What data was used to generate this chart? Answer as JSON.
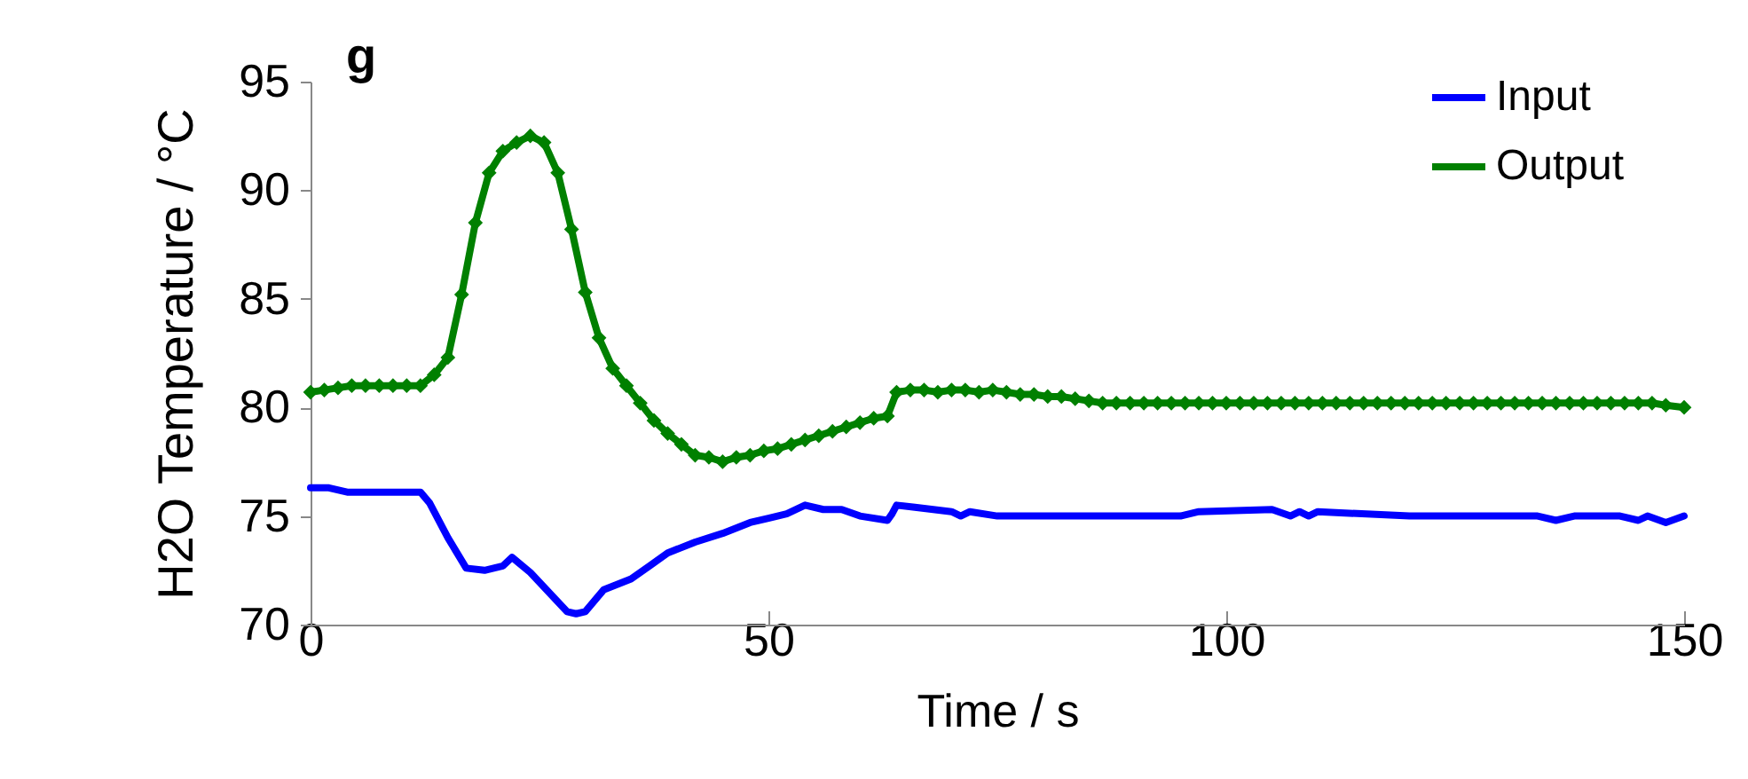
{
  "chart_data": {
    "type": "line",
    "title": "g",
    "xlabel": "Time / s",
    "ylabel": "H2O Temperature / °C",
    "xlim": [
      0,
      150
    ],
    "xticks": [
      0,
      50,
      100,
      150
    ],
    "ylim": [
      70,
      95
    ],
    "yticks": [
      70,
      75,
      80,
      85,
      90,
      95
    ],
    "grid": false,
    "legend": "top right",
    "line_style": "solid",
    "series": [
      {
        "name": "Input",
        "color": "#0000ff",
        "marker": "none",
        "x": [
          0,
          2,
          4,
          8,
          12,
          13,
          15,
          17,
          19,
          21,
          22,
          24,
          26,
          28,
          29,
          30,
          32,
          35,
          37,
          39,
          42,
          45,
          48,
          50,
          52,
          54,
          56,
          58,
          60,
          63,
          63.5,
          64,
          66,
          70,
          71,
          72,
          75,
          80,
          95,
          97,
          105,
          107,
          108,
          109,
          110,
          120,
          134,
          136,
          138,
          143,
          145,
          146,
          148,
          150
        ],
        "values": [
          76.3,
          76.3,
          76.1,
          76.1,
          76.1,
          75.6,
          74.0,
          72.6,
          72.5,
          72.7,
          73.1,
          72.4,
          71.5,
          70.6,
          70.5,
          70.6,
          71.6,
          72.1,
          72.7,
          73.3,
          73.8,
          74.2,
          74.7,
          74.9,
          75.1,
          75.5,
          75.3,
          75.3,
          75.0,
          74.8,
          75.1,
          75.5,
          75.4,
          75.2,
          75.0,
          75.2,
          75.0,
          75.0,
          75.0,
          75.2,
          75.3,
          75.0,
          75.2,
          75.0,
          75.2,
          75.0,
          75.0,
          74.8,
          75.0,
          75.0,
          74.8,
          75.0,
          74.7,
          75.0
        ]
      },
      {
        "name": "Output",
        "color": "#008000",
        "marker": "diamond",
        "x": [
          0,
          1.5,
          3,
          4.5,
          6,
          7.5,
          9,
          10.5,
          12,
          13.5,
          15,
          16.5,
          18,
          19.5,
          21,
          22.5,
          24,
          25.5,
          27,
          28.5,
          30,
          31.5,
          33,
          34.5,
          36,
          37.5,
          39,
          40.5,
          42,
          43.5,
          45,
          46.5,
          48,
          49.5,
          51,
          52.5,
          54,
          55.5,
          57,
          58.5,
          60,
          61.5,
          63,
          64,
          65.5,
          67,
          68.5,
          70,
          71.5,
          73,
          74.5,
          76,
          77.5,
          79,
          80.5,
          82,
          83.5,
          85,
          86.5,
          88,
          89.5,
          91,
          92.5,
          94,
          95.5,
          97,
          98.5,
          100,
          101.5,
          103,
          104.5,
          106,
          107.5,
          109,
          110.5,
          112,
          113.5,
          115,
          116.5,
          118,
          119.5,
          121,
          122.5,
          124,
          125.5,
          127,
          128.5,
          130,
          131.5,
          133,
          134.5,
          136,
          137.5,
          139,
          140.5,
          142,
          143.5,
          145,
          146.5,
          148,
          150
        ],
        "values": [
          80.7,
          80.8,
          80.9,
          81.0,
          81.0,
          81.0,
          81.0,
          81.0,
          81.0,
          81.5,
          82.3,
          85.2,
          88.5,
          90.8,
          91.8,
          92.2,
          92.5,
          92.2,
          90.8,
          88.2,
          85.3,
          83.2,
          81.8,
          81.0,
          80.2,
          79.4,
          78.8,
          78.3,
          77.8,
          77.7,
          77.5,
          77.7,
          77.8,
          78.0,
          78.1,
          78.3,
          78.5,
          78.7,
          78.9,
          79.1,
          79.3,
          79.5,
          79.6,
          80.7,
          80.8,
          80.8,
          80.7,
          80.8,
          80.8,
          80.7,
          80.8,
          80.7,
          80.6,
          80.6,
          80.5,
          80.5,
          80.4,
          80.3,
          80.2,
          80.2,
          80.2,
          80.2,
          80.2,
          80.2,
          80.2,
          80.2,
          80.2,
          80.2,
          80.2,
          80.2,
          80.2,
          80.2,
          80.2,
          80.2,
          80.2,
          80.2,
          80.2,
          80.2,
          80.2,
          80.2,
          80.2,
          80.2,
          80.2,
          80.2,
          80.2,
          80.2,
          80.2,
          80.2,
          80.2,
          80.2,
          80.2,
          80.2,
          80.2,
          80.2,
          80.2,
          80.2,
          80.2,
          80.2,
          80.2,
          80.1,
          80.0
        ]
      }
    ]
  }
}
